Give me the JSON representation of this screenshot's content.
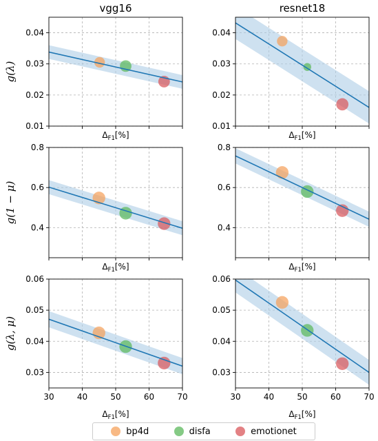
{
  "chart_data": [
    {
      "type": "scatter",
      "title": "vgg16",
      "ylabel": "g(λ)",
      "xlabel": "Δ_{F1}[%]",
      "xlim": [
        30,
        70
      ],
      "ylim": [
        0.01,
        0.045
      ],
      "yticks": [
        "0.01",
        "0.02",
        "0.03",
        "0.04"
      ],
      "xticks": [],
      "grid": true,
      "points": [
        {
          "series": "bp4d",
          "x": 45.2,
          "y": 0.0305,
          "size": 1
        },
        {
          "series": "disfa",
          "x": 53.0,
          "y": 0.0293,
          "size": 1.1
        },
        {
          "series": "emotionet",
          "x": 64.5,
          "y": 0.0243,
          "size": 1.1
        }
      ],
      "fit_line": {
        "x": [
          30,
          70
        ],
        "y": [
          0.0338,
          0.0242
        ]
      },
      "band_halfwidth": 0.0022
    },
    {
      "type": "scatter",
      "title": "resnet18",
      "ylabel": "",
      "xlabel": "Δ_{F1}[%]",
      "xlim": [
        30,
        70
      ],
      "ylim": [
        0.01,
        0.045
      ],
      "yticks": [
        "0.01",
        "0.02",
        "0.03",
        "0.04"
      ],
      "xticks": [],
      "grid": true,
      "points": [
        {
          "series": "bp4d",
          "x": 44.0,
          "y": 0.0373,
          "size": 1
        },
        {
          "series": "disfa",
          "x": 51.5,
          "y": 0.029,
          "size": 0.75
        },
        {
          "series": "emotionet",
          "x": 62.0,
          "y": 0.017,
          "size": 1.45
        }
      ],
      "fit_line": {
        "x": [
          30,
          70
        ],
        "y": [
          0.0432,
          0.016
        ]
      },
      "band_halfwidth": 0.0052
    },
    {
      "type": "scatter",
      "title": "",
      "ylabel": "g(1 − μ)",
      "xlabel": "Δ_{F1}[%]",
      "xlim": [
        30,
        70
      ],
      "ylim": [
        0.25,
        0.8
      ],
      "yticks": [
        "0.4",
        "0.6",
        "0.8"
      ],
      "xticks": [],
      "grid": true,
      "points": [
        {
          "series": "bp4d",
          "x": 45.0,
          "y": 0.548,
          "size": 1.5
        },
        {
          "series": "disfa",
          "x": 53.0,
          "y": 0.472,
          "size": 1.5
        },
        {
          "series": "emotionet",
          "x": 64.5,
          "y": 0.42,
          "size": 1.5
        }
      ],
      "fit_line": {
        "x": [
          30,
          70
        ],
        "y": [
          0.602,
          0.397
        ]
      },
      "band_halfwidth": 0.035
    },
    {
      "type": "scatter",
      "title": "",
      "ylabel": "",
      "xlabel": "Δ_{F1}[%]",
      "xlim": [
        30,
        70
      ],
      "ylim": [
        0.25,
        0.8
      ],
      "yticks": [
        "0.4",
        "0.6",
        "0.8"
      ],
      "xticks": [],
      "grid": true,
      "points": [
        {
          "series": "bp4d",
          "x": 44.0,
          "y": 0.675,
          "size": 1.5
        },
        {
          "series": "disfa",
          "x": 51.5,
          "y": 0.58,
          "size": 1.5
        },
        {
          "series": "emotionet",
          "x": 62.0,
          "y": 0.485,
          "size": 1.5
        }
      ],
      "fit_line": {
        "x": [
          30,
          70
        ],
        "y": [
          0.758,
          0.442
        ]
      },
      "band_halfwidth": 0.038
    },
    {
      "type": "scatter",
      "title": "",
      "ylabel": "g(λ, μ)",
      "xlabel": "Δ_{F1}[%]",
      "xlim": [
        30,
        70
      ],
      "ylim": [
        0.025,
        0.06
      ],
      "yticks": [
        "0.03",
        "0.04",
        "0.05",
        "0.06"
      ],
      "xticks": [
        "30",
        "40",
        "50",
        "60",
        "70"
      ],
      "grid": true,
      "points": [
        {
          "series": "bp4d",
          "x": 45.0,
          "y": 0.0427,
          "size": 1.5
        },
        {
          "series": "disfa",
          "x": 53.0,
          "y": 0.0383,
          "size": 1.5
        },
        {
          "series": "emotionet",
          "x": 64.5,
          "y": 0.033,
          "size": 1.5
        }
      ],
      "fit_line": {
        "x": [
          30,
          70
        ],
        "y": [
          0.0471,
          0.032
        ]
      },
      "band_halfwidth": 0.0026
    },
    {
      "type": "scatter",
      "title": "",
      "ylabel": "",
      "xlabel": "Δ_{F1}[%]",
      "xlim": [
        30,
        70
      ],
      "ylim": [
        0.025,
        0.06
      ],
      "yticks": [
        "0.03",
        "0.04",
        "0.05",
        "0.06"
      ],
      "xticks": [
        "30",
        "40",
        "50",
        "60",
        "70"
      ],
      "grid": true,
      "points": [
        {
          "series": "bp4d",
          "x": 44.0,
          "y": 0.0525,
          "size": 1.5
        },
        {
          "series": "disfa",
          "x": 51.5,
          "y": 0.0435,
          "size": 1.5
        },
        {
          "series": "emotionet",
          "x": 62.0,
          "y": 0.0328,
          "size": 1.5
        }
      ],
      "fit_line": {
        "x": [
          30,
          70
        ],
        "y": [
          0.0597,
          0.03
        ]
      },
      "band_halfwidth": 0.004
    }
  ],
  "legend": {
    "placement": "bottom-center",
    "items": [
      {
        "name": "bp4d",
        "color": "#f5a15b"
      },
      {
        "name": "disfa",
        "color": "#5cb85c"
      },
      {
        "name": "emotionet",
        "color": "#d9575b"
      }
    ]
  },
  "colors": {
    "line": "#1f77b4",
    "band": "#aecde6",
    "grid": "#b0b0b0"
  }
}
